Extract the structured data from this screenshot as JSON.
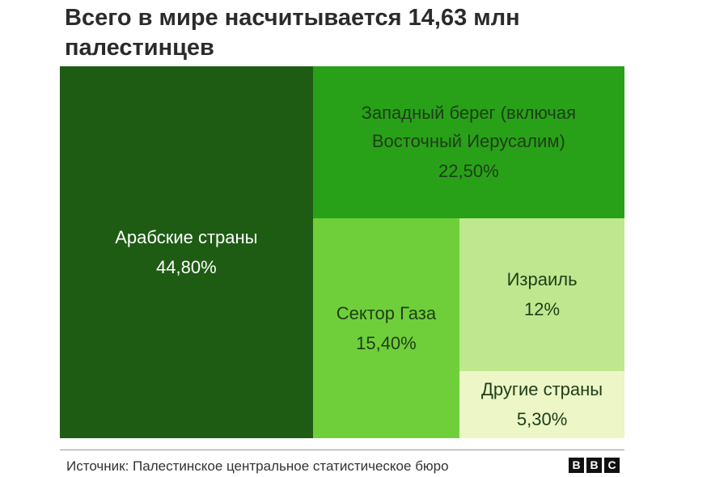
{
  "title": "Всего в мире насчитывается 14,63 млн палестинцев",
  "source": "Источник: Палестинское центральное статистическое бюро",
  "logo": [
    "B",
    "B",
    "C"
  ],
  "chart_data": {
    "type": "treemap",
    "title": "Всего в мире насчитывается 14,63 млн палестинцев",
    "total": "14,63 млн",
    "unit": "%",
    "series": [
      {
        "name": "Арабские страны",
        "value": 44.8,
        "label": "44,80%",
        "color": "#1e5c14",
        "text_color": "#ffffff"
      },
      {
        "name": "Западный берег (включая\nВосточный Иерусалим)",
        "value": 22.5,
        "label": "22,50%",
        "color": "#28a118",
        "text_color": "#1f3d18"
      },
      {
        "name": "Сектор Газа",
        "value": 15.4,
        "label": "15,40%",
        "color": "#6fcf3a",
        "text_color": "#1f3d18"
      },
      {
        "name": "Израиль",
        "value": 12.0,
        "label": "12%",
        "color": "#bfe78f",
        "text_color": "#1f3d18"
      },
      {
        "name": "Другие страны",
        "value": 5.3,
        "label": "5,30%",
        "color": "#ecf6c6",
        "text_color": "#1f3d18"
      }
    ]
  }
}
